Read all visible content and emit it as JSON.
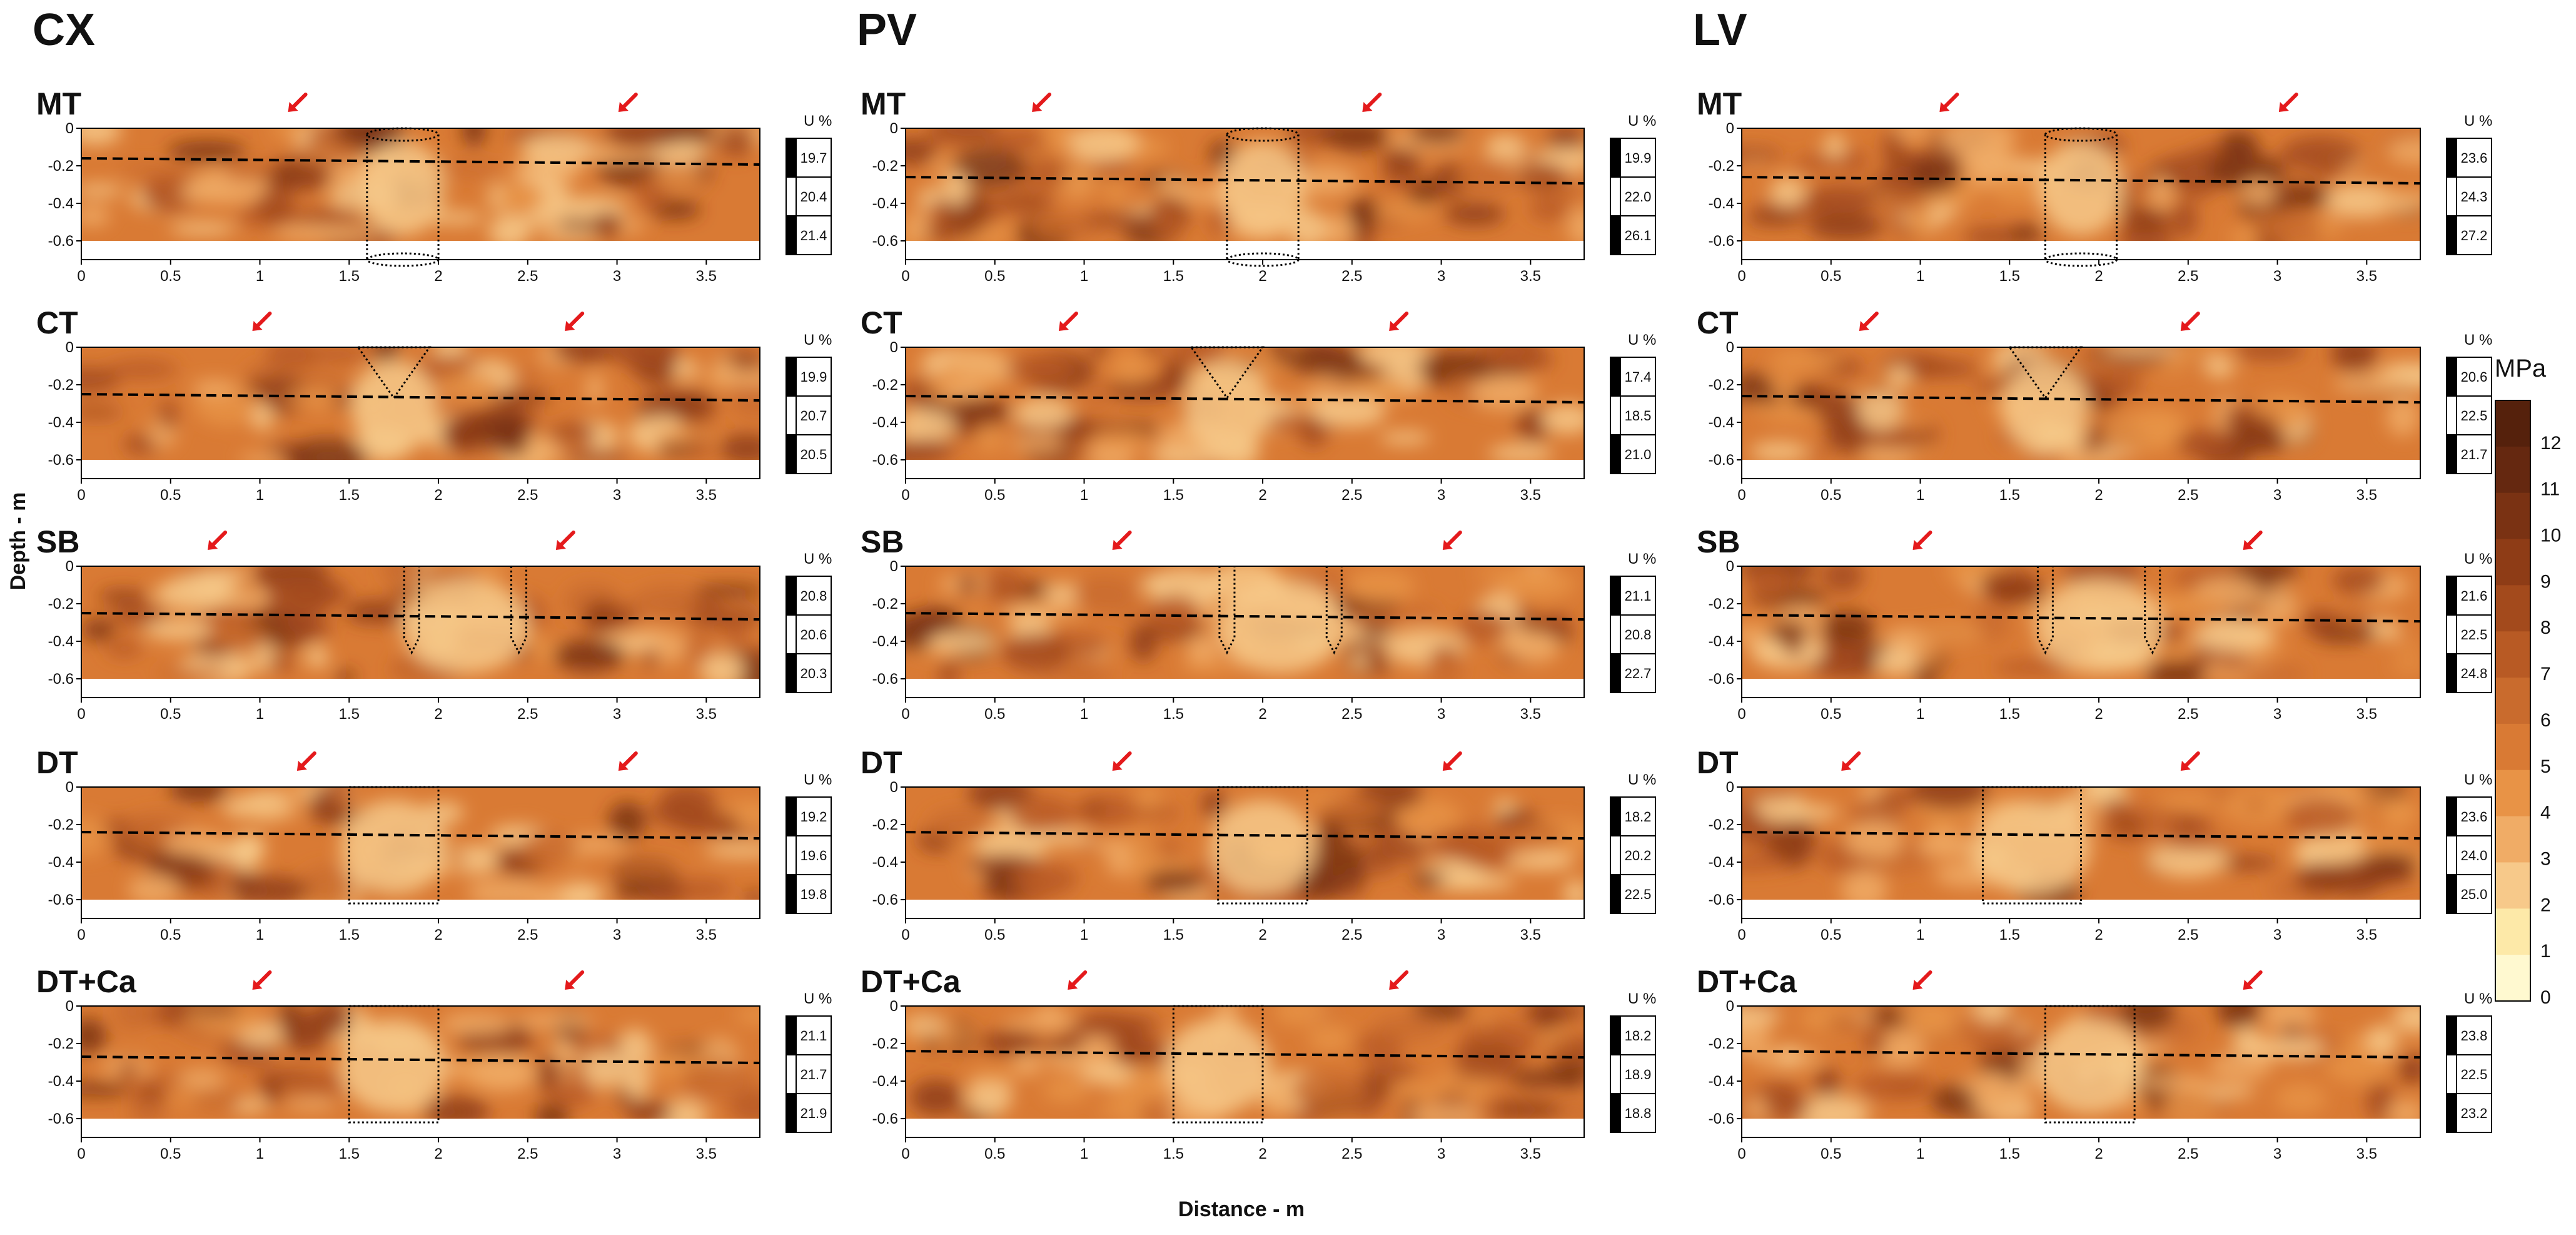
{
  "chart_data": {
    "type": "heatmap",
    "xlabel": "Distance - m",
    "ylabel": "Depth - m",
    "xlim": [
      0,
      3.8
    ],
    "ylim": [
      -0.7,
      0
    ],
    "x_ticks": [
      "0",
      "0.5",
      "1",
      "1.5",
      "2",
      "2.5",
      "3",
      "3.5"
    ],
    "y_ticks": [
      "0",
      "-0.2",
      "-0.4",
      "-0.6"
    ],
    "colorbar": {
      "title": "MPa",
      "ticks": [
        "12",
        "11",
        "10",
        "9",
        "8",
        "7",
        "6",
        "5",
        "4",
        "3",
        "2",
        "1",
        "0"
      ],
      "colors": [
        "#fff9d0",
        "#fde9a8",
        "#f7c98a",
        "#f0ac66",
        "#e89346",
        "#d97a34",
        "#c96b2d",
        "#b85a24",
        "#a34a1c",
        "#8e3c16",
        "#7a3213",
        "#652810",
        "#55210c"
      ]
    },
    "columns": [
      {
        "title": "CX",
        "panels": [
          {
            "label": "MT",
            "moisture_title": "U %",
            "moisture": [
              "19.7",
              "20.4",
              "21.4"
            ],
            "dashed_depth": -0.18,
            "shape": "cylinder",
            "shape_x": [
              1.6,
              2.0
            ],
            "arrows_x": [
              1.2,
              3.05
            ]
          },
          {
            "label": "CT",
            "moisture_title": "U %",
            "moisture": [
              "19.9",
              "20.7",
              "20.5"
            ],
            "dashed_depth": -0.27,
            "shape": "triangle",
            "shape_x": [
              1.55,
              1.95
            ],
            "arrows_x": [
              1.0,
              2.75
            ]
          },
          {
            "label": "SB",
            "moisture_title": "U %",
            "moisture": [
              "20.8",
              "20.6",
              "20.3"
            ],
            "dashed_depth": -0.27,
            "shape": "pins",
            "shape_x": [
              1.85,
              2.45
            ],
            "arrows_x": [
              0.75,
              2.7
            ]
          },
          {
            "label": "DT",
            "moisture_title": "U %",
            "moisture": [
              "19.2",
              "19.6",
              "19.8"
            ],
            "dashed_depth": -0.26,
            "shape": "box",
            "shape_x": [
              1.5,
              2.0
            ],
            "arrows_x": [
              1.25,
              3.05
            ]
          },
          {
            "label": "DT+Ca",
            "moisture_title": "U %",
            "moisture": [
              "21.1",
              "21.7",
              "21.9"
            ],
            "dashed_depth": -0.29,
            "shape": "box",
            "shape_x": [
              1.5,
              2.0
            ],
            "arrows_x": [
              1.0,
              2.75
            ]
          }
        ]
      },
      {
        "title": "PV",
        "panels": [
          {
            "label": "MT",
            "moisture_title": "U %",
            "moisture": [
              "19.9",
              "22.0",
              "26.1"
            ],
            "dashed_depth": -0.28,
            "shape": "cylinder",
            "shape_x": [
              1.8,
              2.2
            ],
            "arrows_x": [
              0.75,
              2.6
            ]
          },
          {
            "label": "CT",
            "moisture_title": "U %",
            "moisture": [
              "17.4",
              "18.5",
              "21.0"
            ],
            "dashed_depth": -0.28,
            "shape": "triangle",
            "shape_x": [
              1.6,
              2.0
            ],
            "arrows_x": [
              0.9,
              2.75
            ]
          },
          {
            "label": "SB",
            "moisture_title": "U %",
            "moisture": [
              "21.1",
              "20.8",
              "22.7"
            ],
            "dashed_depth": -0.27,
            "shape": "pins",
            "shape_x": [
              1.8,
              2.4
            ],
            "arrows_x": [
              1.2,
              3.05
            ]
          },
          {
            "label": "DT",
            "moisture_title": "U %",
            "moisture": [
              "18.2",
              "20.2",
              "22.5"
            ],
            "dashed_depth": -0.26,
            "shape": "box",
            "shape_x": [
              1.75,
              2.25
            ],
            "arrows_x": [
              1.2,
              3.05
            ]
          },
          {
            "label": "DT+Ca",
            "moisture_title": "U %",
            "moisture": [
              "18.2",
              "18.9",
              "18.8"
            ],
            "dashed_depth": -0.26,
            "shape": "box",
            "shape_x": [
              1.5,
              2.0
            ],
            "arrows_x": [
              0.95,
              2.75
            ]
          }
        ]
      },
      {
        "title": "LV",
        "panels": [
          {
            "label": "MT",
            "moisture_title": "U %",
            "moisture": [
              "23.6",
              "24.3",
              "27.2"
            ],
            "dashed_depth": -0.28,
            "shape": "cylinder",
            "shape_x": [
              1.7,
              2.1
            ],
            "arrows_x": [
              1.15,
              3.05
            ]
          },
          {
            "label": "CT",
            "moisture_title": "U %",
            "moisture": [
              "20.6",
              "22.5",
              "21.7"
            ],
            "dashed_depth": -0.28,
            "shape": "triangle",
            "shape_x": [
              1.5,
              1.9
            ],
            "arrows_x": [
              0.7,
              2.5
            ]
          },
          {
            "label": "SB",
            "moisture_title": "U %",
            "moisture": [
              "21.6",
              "22.5",
              "24.8"
            ],
            "dashed_depth": -0.28,
            "shape": "pins",
            "shape_x": [
              1.7,
              2.3
            ],
            "arrows_x": [
              1.0,
              2.85
            ]
          },
          {
            "label": "DT",
            "moisture_title": "U %",
            "moisture": [
              "23.6",
              "24.0",
              "25.0"
            ],
            "dashed_depth": -0.26,
            "shape": "box",
            "shape_x": [
              1.35,
              1.9
            ],
            "arrows_x": [
              0.6,
              2.5
            ]
          },
          {
            "label": "DT+Ca",
            "moisture_title": "U %",
            "moisture": [
              "23.8",
              "22.5",
              "23.2"
            ],
            "dashed_depth": -0.26,
            "shape": "box",
            "shape_x": [
              1.7,
              2.2
            ],
            "arrows_x": [
              1.0,
              2.85
            ]
          }
        ]
      }
    ]
  }
}
